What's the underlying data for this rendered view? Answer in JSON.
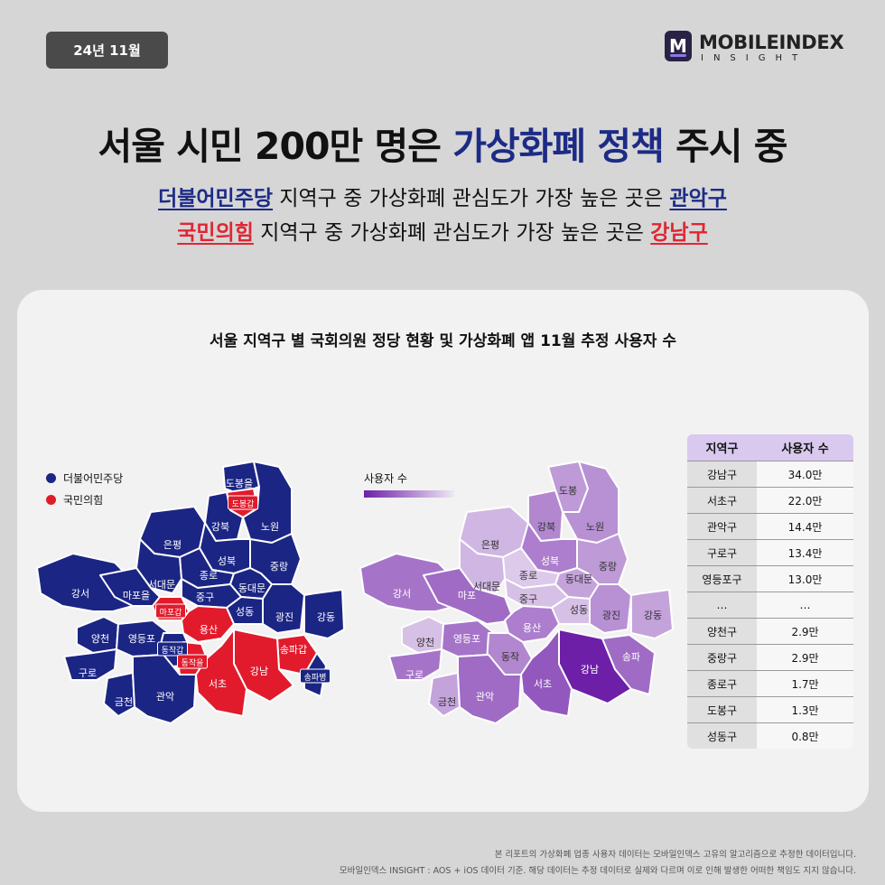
{
  "date_badge": "24년 11월",
  "logo": {
    "letter": "M",
    "name": "MOBILEINDEX",
    "sub": "INSIGHT"
  },
  "headline": {
    "pre": "서울 시민 200만 명은 ",
    "highlight": "가상화폐 정책",
    "post": " 주시 중"
  },
  "subline1": {
    "party": "더불어민주당",
    "middle": " 지역구 중 가상화폐 관심도가 가장 높은 곳은 ",
    "district": "관악구"
  },
  "subline2": {
    "party": "국민의힘",
    "middle": " 지역구 중 가상화폐 관심도가 가장 높은 곳은 ",
    "district": "강남구"
  },
  "panel_title": "서울 지역구 별 국회의원 정당 현황 및 가상화폐 앱 11월 추정 사용자 수",
  "party_legend": [
    {
      "label": "더불어민주당",
      "color": "#1b2584"
    },
    {
      "label": "국민의힘",
      "color": "#e11b2c"
    }
  ],
  "user_legend_label": "사용자 수",
  "colors": {
    "democratic": "#1b2584",
    "ppp": "#e11b2c",
    "purple_high": "#6e1fa8",
    "purple_low": "#e9dcf1"
  },
  "party_map": {
    "districts": [
      {
        "label": "도봉을",
        "party": "D"
      },
      {
        "label": "도봉갑",
        "party": "P"
      },
      {
        "label": "강북",
        "party": "D"
      },
      {
        "label": "노원",
        "party": "D"
      },
      {
        "label": "은평",
        "party": "D"
      },
      {
        "label": "성북",
        "party": "D"
      },
      {
        "label": "종로",
        "party": "D"
      },
      {
        "label": "중랑",
        "party": "D"
      },
      {
        "label": "서대문",
        "party": "D"
      },
      {
        "label": "동대문",
        "party": "D"
      },
      {
        "label": "강서",
        "party": "D"
      },
      {
        "label": "마포을",
        "party": "D"
      },
      {
        "label": "중구",
        "party": "D"
      },
      {
        "label": "성동",
        "party": "D"
      },
      {
        "label": "광진",
        "party": "D"
      },
      {
        "label": "강동",
        "party": "D"
      },
      {
        "label": "마포갑",
        "party": "P"
      },
      {
        "label": "용산",
        "party": "P"
      },
      {
        "label": "양천",
        "party": "D"
      },
      {
        "label": "영등포",
        "party": "D"
      },
      {
        "label": "동작갑",
        "party": "D"
      },
      {
        "label": "동작을",
        "party": "P"
      },
      {
        "label": "송파갑",
        "party": "P"
      },
      {
        "label": "강남",
        "party": "P"
      },
      {
        "label": "서초",
        "party": "P"
      },
      {
        "label": "송파병",
        "party": "D"
      },
      {
        "label": "구로",
        "party": "D"
      },
      {
        "label": "금천",
        "party": "D"
      },
      {
        "label": "관악",
        "party": "D"
      }
    ]
  },
  "user_map": {
    "districts": [
      {
        "label": "도봉",
        "level": 0.35
      },
      {
        "label": "강북",
        "level": 0.45
      },
      {
        "label": "노원",
        "level": 0.4
      },
      {
        "label": "은평",
        "level": 0.2
      },
      {
        "label": "성북",
        "level": 0.5
      },
      {
        "label": "종로",
        "level": 0.1
      },
      {
        "label": "중랑",
        "level": 0.35
      },
      {
        "label": "서대문",
        "level": 0.2
      },
      {
        "label": "동대문",
        "level": 0.3
      },
      {
        "label": "강서",
        "level": 0.55
      },
      {
        "label": "마포",
        "level": 0.6
      },
      {
        "label": "중구",
        "level": 0.15
      },
      {
        "label": "성동",
        "level": 0.15
      },
      {
        "label": "광진",
        "level": 0.4
      },
      {
        "label": "강동",
        "level": 0.3
      },
      {
        "label": "용산",
        "level": 0.5
      },
      {
        "label": "양천",
        "level": 0.15
      },
      {
        "label": "영등포",
        "level": 0.55
      },
      {
        "label": "동작",
        "level": 0.45
      },
      {
        "label": "구로",
        "level": 0.55
      },
      {
        "label": "금천",
        "level": 0.3
      },
      {
        "label": "관악",
        "level": 0.6
      },
      {
        "label": "서초",
        "level": 0.7
      },
      {
        "label": "강남",
        "level": 1.0
      },
      {
        "label": "송파",
        "level": 0.6
      }
    ]
  },
  "table": {
    "headers": [
      "지역구",
      "사용자 수"
    ],
    "rows": [
      [
        "강남구",
        "34.0만"
      ],
      [
        "서초구",
        "22.0만"
      ],
      [
        "관악구",
        "14.4만"
      ],
      [
        "구로구",
        "13.4만"
      ],
      [
        "영등포구",
        "13.0만"
      ],
      [
        "…",
        "…"
      ],
      [
        "양천구",
        "2.9만"
      ],
      [
        "중랑구",
        "2.9만"
      ],
      [
        "종로구",
        "1.7만"
      ],
      [
        "도봉구",
        "1.3만"
      ],
      [
        "성동구",
        "0.8만"
      ]
    ]
  },
  "footnote1": "본 리포트의 가상화폐 업종 사용자 데이터는 모바일인덱스 고유의 알고리즘으로 추정한 데이터입니다.",
  "footnote2": "모바일인덱스 INSIGHT : AOS + iOS 데이터 기준. 해당 데이터는 추정 데이터로 실제와 다르며 이로 인해 발생한 어떠한 책임도 지지 않습니다."
}
